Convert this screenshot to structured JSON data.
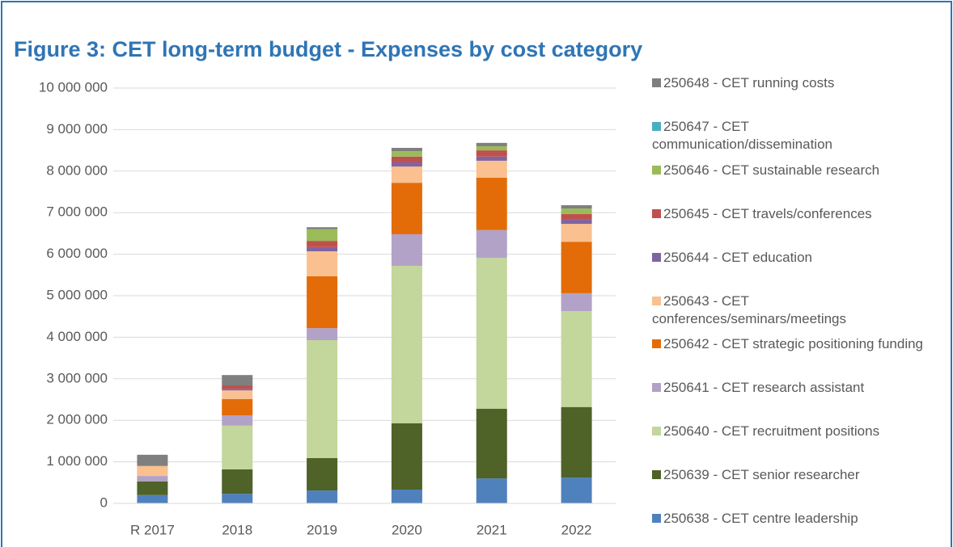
{
  "chart_data": {
    "type": "stacked_bar",
    "title": "Figure 3: CET long-term budget - Expenses by cost category",
    "categories": [
      "R 2017",
      "2018",
      "2019",
      "2020",
      "2021",
      "2022"
    ],
    "series": [
      {
        "name": "250638 - CET centre leadership",
        "color": "#4f81bd",
        "values": [
          200000,
          230000,
          310000,
          330000,
          600000,
          620000
        ]
      },
      {
        "name": "250639 - CET senior researcher",
        "color": "#4f6228",
        "values": [
          330000,
          590000,
          780000,
          1600000,
          1680000,
          1700000
        ]
      },
      {
        "name": "250640 - CET recruitment positions",
        "color": "#c3d69b",
        "values": [
          0,
          1050000,
          2840000,
          3790000,
          3630000,
          2310000
        ]
      },
      {
        "name": "250641 - CET research assistant",
        "color": "#b3a2c7",
        "values": [
          130000,
          250000,
          290000,
          760000,
          670000,
          430000
        ]
      },
      {
        "name": "250642 - CET strategic positioning funding",
        "color": "#e36c09",
        "values": [
          0,
          390000,
          1250000,
          1240000,
          1260000,
          1240000
        ]
      },
      {
        "name": "250643 - CET conferences/seminars/meetings",
        "color": "#fac090",
        "values": [
          240000,
          210000,
          600000,
          390000,
          410000,
          430000
        ]
      },
      {
        "name": "250644 - CET education",
        "color": "#8064a2",
        "values": [
          0,
          40000,
          100000,
          100000,
          100000,
          100000
        ]
      },
      {
        "name": "250645 - CET travels/conferences",
        "color": "#c0504d",
        "values": [
          0,
          80000,
          150000,
          140000,
          150000,
          140000
        ]
      },
      {
        "name": "250646 - CET sustainable research",
        "color": "#9bbb59",
        "values": [
          0,
          0,
          280000,
          130000,
          100000,
          130000
        ]
      },
      {
        "name": "250647 - CET communication/dissemination",
        "color": "#4bacc6",
        "values": [
          0,
          0,
          0,
          0,
          0,
          0
        ]
      },
      {
        "name": "250648 - CET running costs",
        "color": "#7f7f7f",
        "values": [
          270000,
          250000,
          50000,
          80000,
          80000,
          80000
        ]
      }
    ],
    "ylim": [
      0,
      10000000
    ],
    "yticks": [
      0,
      {
        "value": 1000000,
        "label": "1 000 000"
      },
      {
        "value": 2000000,
        "label": "2 000 000"
      },
      {
        "value": 3000000,
        "label": "3 000 000"
      },
      {
        "value": 4000000,
        "label": "4 000 000"
      },
      {
        "value": 5000000,
        "label": "5 000 000"
      },
      {
        "value": 6000000,
        "label": "6 000 000"
      },
      {
        "value": 7000000,
        "label": "7 000 000"
      },
      {
        "value": 8000000,
        "label": "8 000 000"
      },
      {
        "value": 9000000,
        "label": "9 000 000"
      },
      {
        "value": 10000000,
        "label": "10 000 000"
      }
    ],
    "grid": true,
    "legend": "right"
  }
}
